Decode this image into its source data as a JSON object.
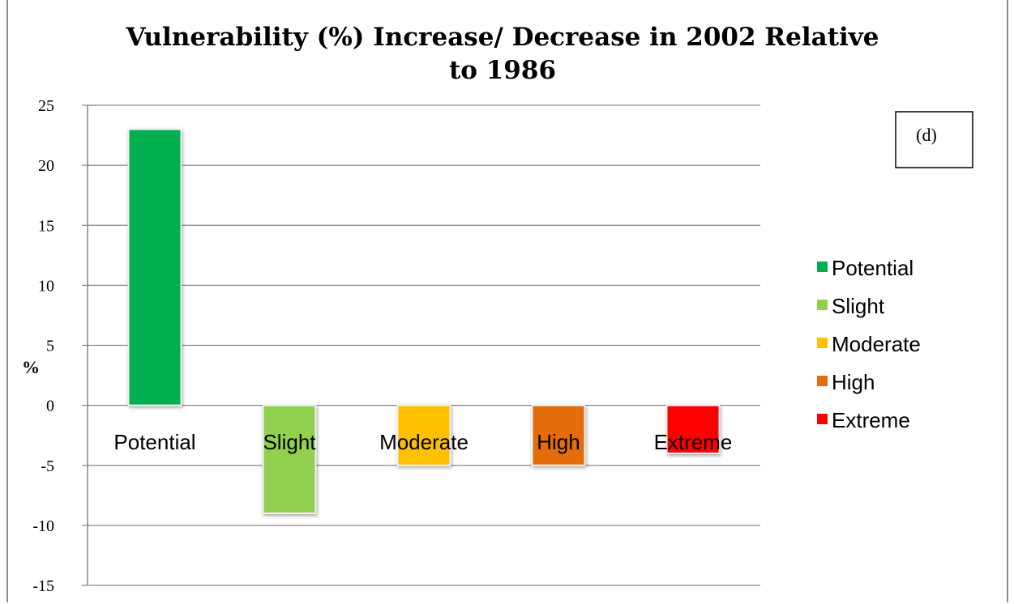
{
  "chart_data": {
    "type": "bar",
    "title_lines": [
      "Vulnerability (%) Increase/ Decrease in 2002 Relative",
      "to 1986"
    ],
    "ylabel": "%",
    "xlabel": "",
    "categories": [
      "Potential",
      "Slight",
      "Moderate",
      "High",
      "Extreme"
    ],
    "values": [
      23,
      -9,
      -5,
      -5,
      -4
    ],
    "colors": [
      "#00b050",
      "#92d050",
      "#ffc000",
      "#e46c0a",
      "#ff0000"
    ],
    "ylim": [
      -15,
      25
    ],
    "yticks": [
      25,
      20,
      15,
      10,
      5,
      0,
      -5,
      -10,
      -15
    ],
    "grid": true,
    "legend_position": "right",
    "legend": [
      "Potential",
      "Slight",
      "Moderate",
      "High",
      "Extreme"
    ],
    "annotation": "(d)"
  }
}
